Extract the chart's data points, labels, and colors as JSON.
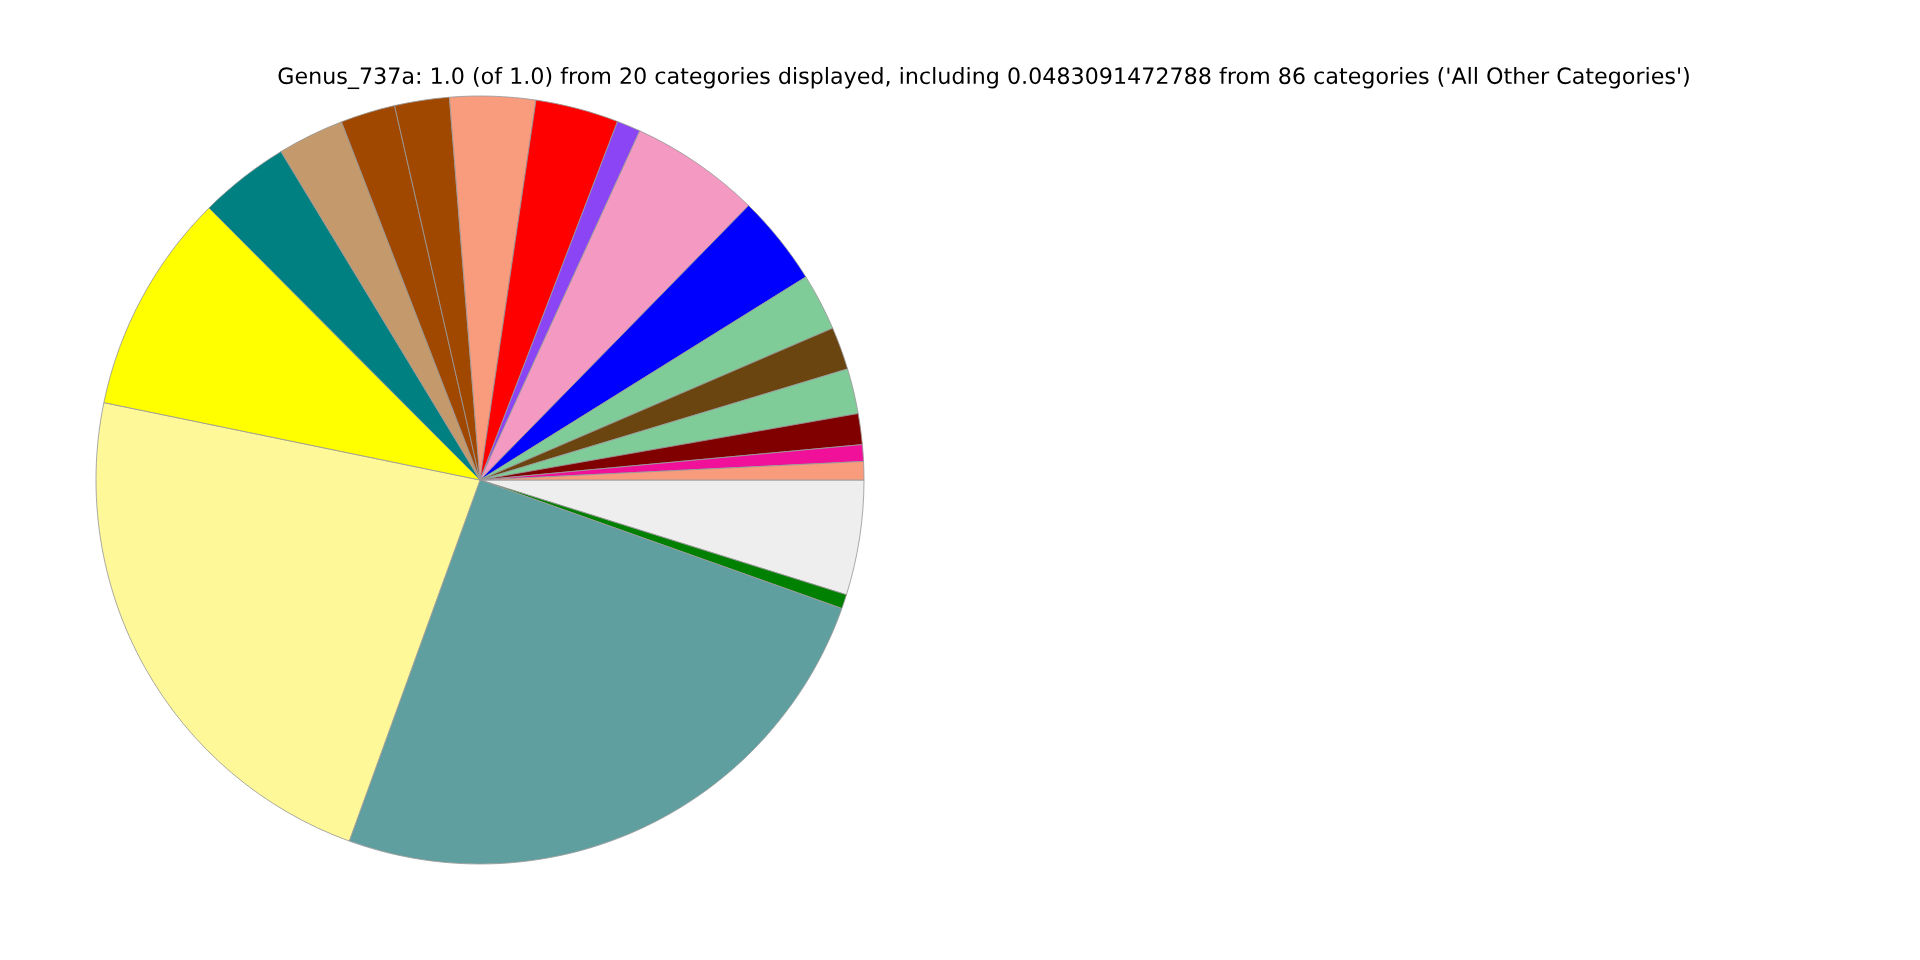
{
  "chart_data": {
    "type": "pie",
    "title": "Genus_737a: 1.0 (of 1.0) from 20 categories displayed, including 0.0483091472788 from 86 categories ('All Other Categories')",
    "categories": [
      null,
      null,
      null,
      null,
      null,
      null,
      null,
      null,
      null,
      null,
      null,
      null,
      null,
      null,
      null,
      null,
      null,
      null,
      null,
      null
    ],
    "values": [
      4.83,
      0.6,
      25.1,
      22.7,
      9.3,
      3.8,
      2.8,
      2.3,
      2.3,
      3.6,
      3.5,
      1.0,
      5.5,
      3.8,
      2.4,
      1.8,
      1.9,
      1.3,
      0.7,
      0.77
    ],
    "colors": [
      "#eeeeee",
      "#008000",
      "#5f9f9f",
      "#fff899",
      "#ffff00",
      "#008080",
      "#c49a6c",
      "#a14800",
      "#a14800",
      "#f99b7d",
      "#ff0000",
      "#8b45f5",
      "#f49ac2",
      "#0000ff",
      "#80cc99",
      "#6b4510",
      "#80cc99",
      "#800000",
      "#f0109a",
      "#f99b7d"
    ],
    "legend": false
  }
}
